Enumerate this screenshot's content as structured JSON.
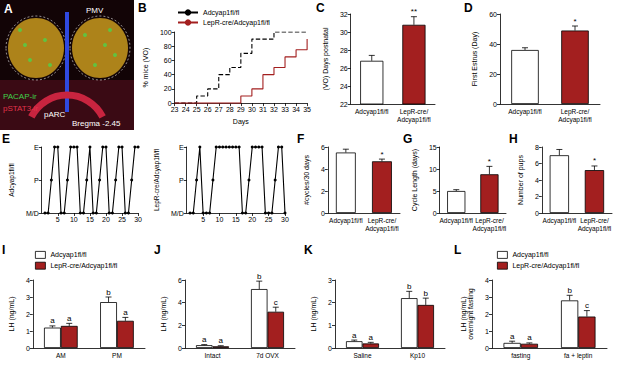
{
  "chart_data": [
    {
      "type": "image",
      "title": "A",
      "annotations": [
        "PMV",
        "pARC",
        "PACAP-ir",
        "pSTAT3-ir",
        "Bregma -2.45"
      ]
    },
    {
      "type": "line",
      "title": "B",
      "xlabel": "Days",
      "ylabel": "% mice (VO)",
      "x": [
        23,
        24,
        25,
        26,
        27,
        28,
        29,
        30,
        31,
        32,
        33,
        34,
        35
      ],
      "xlim": [
        23,
        35
      ],
      "xticks": [
        23,
        24,
        25,
        26,
        27,
        28,
        29,
        30,
        31,
        32,
        33,
        34,
        35
      ],
      "ylim": [
        0,
        100
      ],
      "yticks": [
        0,
        20,
        40,
        60,
        80,
        100
      ],
      "grid": false,
      "legend": "top-left",
      "series": [
        {
          "name": "Adcyap1fl/fl",
          "color": "#000000",
          "line_style": "dashed",
          "values": [
            0,
            0,
            10,
            20,
            40,
            50,
            70,
            90,
            90,
            100,
            100,
            100,
            100
          ]
        },
        {
          "name": "LepR-cre/Adcyap1fl/fl",
          "color": "#a31f1f",
          "line_style": "solid",
          "values": [
            0,
            0,
            0,
            0,
            0,
            0,
            10,
            20,
            40,
            50,
            65,
            75,
            90
          ]
        }
      ]
    },
    {
      "type": "bar",
      "title": "C",
      "ylabel": "(VO) Days postnatal",
      "categories": [
        "Adcyap1fl/fl",
        "LepR-cre/Adcyap1fl/fl"
      ],
      "values": [
        26.8,
        30.8
      ],
      "errors": [
        0.6,
        0.9
      ],
      "annotations": [
        null,
        "**"
      ],
      "colors": [
        "#ffffff",
        "#a31f1f"
      ],
      "ylim": [
        22,
        32
      ],
      "yticks": [
        22,
        24,
        26,
        28,
        30,
        32
      ],
      "grid": false
    },
    {
      "type": "bar",
      "title": "D",
      "ylabel": "First Estrus (Day)",
      "categories": [
        "Adcyap1fl/fl",
        "LepR-cre/Adcyap1fl/fl"
      ],
      "values": [
        36,
        49
      ],
      "errors": [
        1.5,
        3
      ],
      "annotations": [
        null,
        "*"
      ],
      "colors": [
        "#ffffff",
        "#a31f1f"
      ],
      "ylim": [
        0,
        60
      ],
      "yticks": [
        0,
        20,
        40,
        60
      ],
      "grid": false
    },
    {
      "type": "line",
      "title": "E",
      "ylabel": "Adcyap1fl/fl",
      "x": [
        1,
        2,
        3,
        4,
        5,
        6,
        7,
        8,
        9,
        10,
        11,
        12,
        13,
        14,
        15,
        16,
        17,
        18,
        19,
        20,
        21,
        22,
        23,
        24,
        25,
        26,
        27,
        28,
        29,
        30
      ],
      "xlim": [
        0,
        30
      ],
      "xticks": [
        5,
        10,
        15,
        20,
        25,
        30
      ],
      "ycategories": [
        "M/D",
        "P",
        "E"
      ],
      "values": [
        "M/D",
        "M/D",
        "P",
        "E",
        "E",
        "M/D",
        "M/D",
        "P",
        "E",
        "E",
        "E",
        "M/D",
        "M/D",
        "P",
        "E",
        "M/D",
        "M/D",
        "P",
        "E",
        "E",
        "M/D",
        "M/D",
        "P",
        "E",
        "E",
        "M/D",
        "M/D",
        "P",
        "E",
        "E"
      ],
      "color": "#000000",
      "marker": "circle",
      "grid": false
    },
    {
      "type": "line",
      "ylabel": "LepR-cre/Adcyap1fl/fl",
      "x": [
        1,
        2,
        3,
        4,
        5,
        6,
        7,
        8,
        9,
        10,
        11,
        12,
        13,
        14,
        15,
        16,
        17,
        18,
        19,
        20,
        21,
        22,
        23,
        24,
        25,
        26,
        27,
        28,
        29,
        30
      ],
      "xlim": [
        0,
        30
      ],
      "xticks": [
        5,
        10,
        15,
        20,
        25,
        30
      ],
      "ycategories": [
        "M/D",
        "P",
        "E"
      ],
      "values": [
        "M/D",
        "M/D",
        "P",
        "E",
        "M/D",
        "M/D",
        "M/D",
        "P",
        "E",
        "E",
        "E",
        "E",
        "E",
        "E",
        "E",
        "E",
        "M/D",
        "M/D",
        "P",
        "E",
        "E",
        "E",
        "E",
        "M/D",
        "M/D",
        "M/D",
        "P",
        "E",
        "E",
        "M/D"
      ],
      "color": "#000000",
      "marker": "circle",
      "grid": false
    },
    {
      "type": "bar",
      "title": "F",
      "ylabel": "#cycles/30 days",
      "categories": [
        "Adcyap1fl/fl",
        "LepR-cre/Adcyap1fl/fl"
      ],
      "values": [
        5.5,
        4.7
      ],
      "errors": [
        0.3,
        0.2
      ],
      "annotations": [
        null,
        "*"
      ],
      "colors": [
        "#ffffff",
        "#a31f1f"
      ],
      "ylim": [
        0,
        6
      ],
      "yticks": [
        0,
        2,
        4,
        6
      ],
      "grid": false
    },
    {
      "type": "bar",
      "title": "G",
      "ylabel": "Cycle Length (days)",
      "categories": [
        "Adcyap1fl/fl",
        "LepR-cre/Adcyap1fl/fl"
      ],
      "values": [
        5,
        8.8
      ],
      "errors": [
        0.3,
        1.8
      ],
      "annotations": [
        null,
        "*"
      ],
      "colors": [
        "#ffffff",
        "#a31f1f"
      ],
      "ylim": [
        0,
        15
      ],
      "yticks": [
        0,
        5,
        10,
        15
      ],
      "grid": false
    },
    {
      "type": "bar",
      "title": "H",
      "ylabel": "Number of pups",
      "categories": [
        "Adcyap1fl/fl",
        "LepR-cre/Adcyap1fl/fl"
      ],
      "values": [
        7,
        5.2
      ],
      "errors": [
        0.7,
        0.5
      ],
      "annotations": [
        null,
        "*"
      ],
      "colors": [
        "#ffffff",
        "#a31f1f"
      ],
      "ylim": [
        0,
        8
      ],
      "yticks": [
        0,
        2,
        4,
        6,
        8
      ],
      "grid": false
    },
    {
      "type": "bar",
      "title": "I",
      "ylabel": "LH (ng/mL)",
      "categories": [
        "AM",
        "PM"
      ],
      "legend": "top-left",
      "series": [
        {
          "name": "Adcyap1fl/fl",
          "color": "#ffffff",
          "values": [
            1.2,
            2.7
          ],
          "errors": [
            0.1,
            0.3
          ],
          "annotations": [
            "a",
            "b"
          ]
        },
        {
          "name": "LepR-cre/Adcyap1fl/fl",
          "color": "#a31f1f",
          "values": [
            1.3,
            1.6
          ],
          "errors": [
            0.15,
            0.2
          ],
          "annotations": [
            "a",
            "a"
          ]
        }
      ],
      "ylim": [
        0,
        4
      ],
      "yticks": [
        0,
        1,
        2,
        3,
        4
      ],
      "grid": false
    },
    {
      "type": "bar",
      "title": "J",
      "ylabel": "LH (ng/mL)",
      "categories": [
        "Intact",
        "7d OVX"
      ],
      "series": [
        {
          "name": "Adcyap1fl/fl",
          "color": "#ffffff",
          "values": [
            0.25,
            5.2
          ],
          "errors": [
            0.05,
            0.7
          ],
          "annotations": [
            "a",
            "b"
          ]
        },
        {
          "name": "LepR-cre/Adcyap1fl/fl",
          "color": "#a31f1f",
          "values": [
            0.15,
            3.2
          ],
          "errors": [
            0.05,
            0.4
          ],
          "annotations": [
            "a",
            "c"
          ]
        }
      ],
      "ylim": [
        0,
        6
      ],
      "yticks": [
        0,
        2,
        4,
        6
      ],
      "grid": false
    },
    {
      "type": "bar",
      "title": "K",
      "ylabel": "LH (ng/mL)",
      "categories": [
        "Saline",
        "Kp10"
      ],
      "series": [
        {
          "name": "Adcyap1fl/fl",
          "color": "#ffffff",
          "values": [
            0.3,
            2.2
          ],
          "errors": [
            0.05,
            0.3
          ],
          "annotations": [
            "a",
            "b"
          ]
        },
        {
          "name": "LepR-cre/Adcyap1fl/fl",
          "color": "#a31f1f",
          "values": [
            0.2,
            1.9
          ],
          "errors": [
            0.05,
            0.3
          ],
          "annotations": [
            "a",
            "b"
          ]
        }
      ],
      "ylim": [
        0,
        3
      ],
      "yticks": [
        0,
        1,
        2,
        3
      ],
      "grid": false
    },
    {
      "type": "bar",
      "title": "L",
      "ylabel": "LH (ng/mL) overnight fasting",
      "categories": [
        "fasting",
        "fa + leptin"
      ],
      "legend": "top-left",
      "series": [
        {
          "name": "Adcyap1fl/fl",
          "color": "#ffffff",
          "values": [
            0.3,
            2.8
          ],
          "errors": [
            0.1,
            0.3
          ],
          "annotations": [
            "a",
            "b"
          ]
        },
        {
          "name": "LepR-cre/Adcyap1fl/fl",
          "color": "#a31f1f",
          "values": [
            0.25,
            1.85
          ],
          "errors": [
            0.05,
            0.35
          ],
          "annotations": [
            "a",
            "c"
          ]
        }
      ],
      "ylim": [
        0,
        4
      ],
      "yticks": [
        0,
        1,
        2,
        3,
        4
      ],
      "grid": false
    }
  ]
}
